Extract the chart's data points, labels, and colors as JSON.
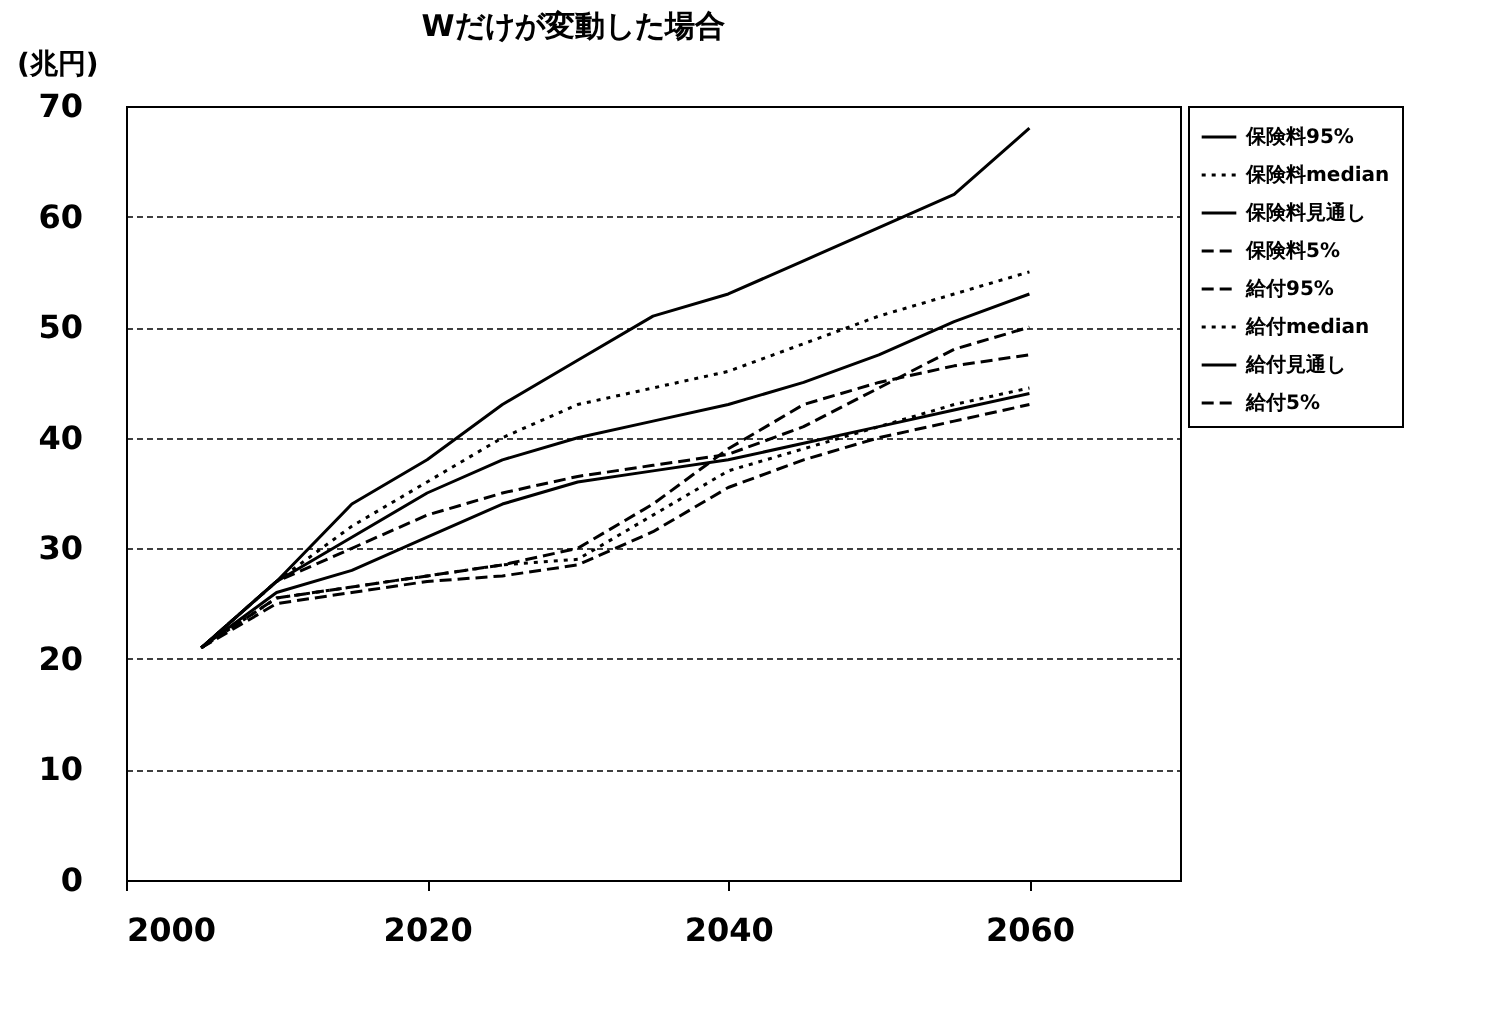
{
  "chart_data": {
    "type": "line",
    "title": "Wだけが変動した場合",
    "ylabel": "(兆円)",
    "x": [
      2005,
      2010,
      2015,
      2020,
      2025,
      2030,
      2035,
      2040,
      2045,
      2050,
      2055,
      2060
    ],
    "xlim": [
      2000,
      2070
    ],
    "xticks": [
      2000,
      2020,
      2040,
      2060
    ],
    "ylim": [
      0,
      70
    ],
    "yticks": [
      0,
      10,
      20,
      30,
      40,
      50,
      60,
      70
    ],
    "grid": "y",
    "legend": "right",
    "series": [
      {
        "name": "保険料95%",
        "color": "#000000",
        "line_style": "solid",
        "values": [
          21,
          27,
          34,
          38,
          43,
          47,
          51,
          53,
          56,
          59,
          62,
          68
        ]
      },
      {
        "name": "保険料median",
        "color": "#000000",
        "line_style": "dotted",
        "values": [
          21,
          27,
          32,
          36,
          40,
          43,
          44.5,
          46,
          48.5,
          51,
          53,
          55
        ]
      },
      {
        "name": "保険料見通し",
        "color": "#000000",
        "line_style": "solid",
        "values": [
          21,
          27,
          31,
          35,
          38,
          40,
          41.5,
          43,
          45,
          47.5,
          50.5,
          53
        ]
      },
      {
        "name": "保険料5%",
        "color": "#000000",
        "line_style": "dashed",
        "values": [
          21,
          27,
          30,
          33,
          35,
          36.5,
          37.5,
          38.5,
          41,
          44.5,
          48,
          50
        ]
      },
      {
        "name": "給付95%",
        "color": "#000000",
        "line_style": "dashed",
        "values": [
          21,
          25.5,
          26.5,
          27.5,
          28.5,
          30,
          34,
          39,
          43,
          45,
          46.5,
          47.5
        ]
      },
      {
        "name": "給付median",
        "color": "#000000",
        "line_style": "dotted",
        "values": [
          21,
          25.5,
          26.5,
          27.5,
          28.5,
          29,
          33,
          37,
          39,
          41,
          43,
          44.5
        ]
      },
      {
        "name": "給付見通し",
        "color": "#000000",
        "line_style": "solid",
        "values": [
          21,
          26,
          28,
          31,
          34,
          36,
          37,
          38,
          39.5,
          41,
          42.5,
          44
        ]
      },
      {
        "name": "給付5%",
        "color": "#000000",
        "line_style": "dashed",
        "values": [
          21,
          25,
          26,
          27,
          27.5,
          28.5,
          31.5,
          35.5,
          38,
          40,
          41.5,
          43
        ]
      }
    ]
  }
}
